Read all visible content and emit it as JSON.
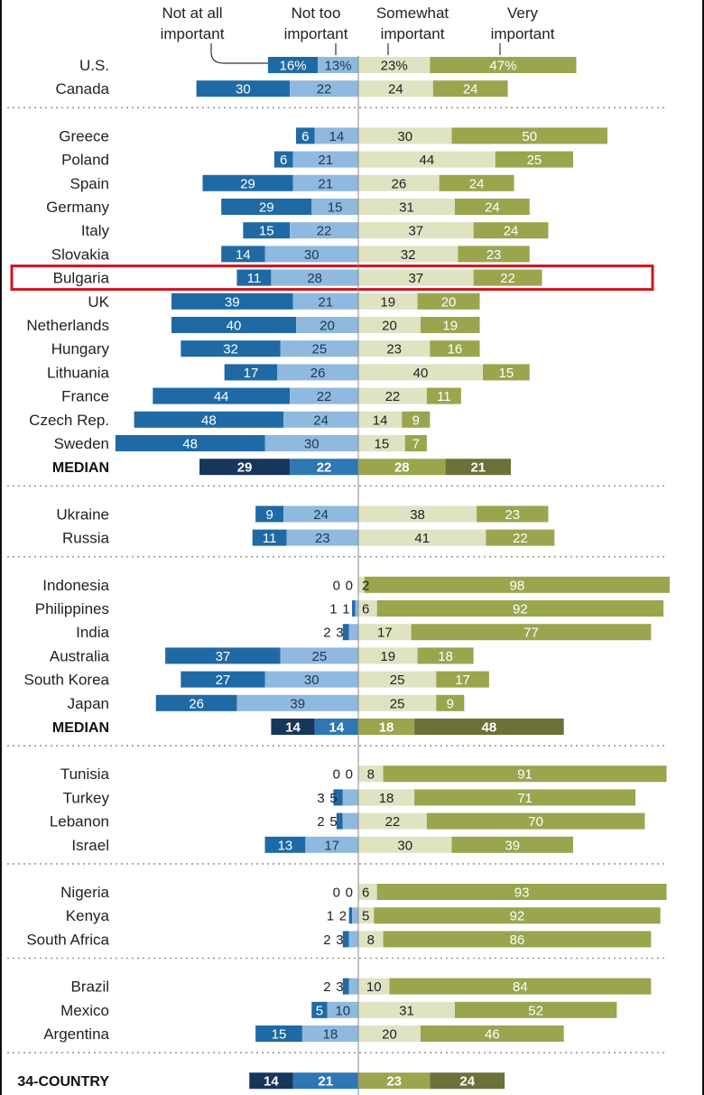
{
  "chart_data": {
    "type": "bar",
    "subtype": "diverging-stacked",
    "legend": [
      {
        "key": "not_at_all",
        "label": "Not at all important",
        "lines": [
          "Not at all",
          "important"
        ],
        "color": "#1f6aa5"
      },
      {
        "key": "not_too",
        "label": "Not too important",
        "lines": [
          "Not too",
          "important"
        ],
        "color": "#8fb9df"
      },
      {
        "key": "somewhat",
        "label": "Somewhat important",
        "lines": [
          "Somewhat",
          "important"
        ],
        "color": "#dfe3c2"
      },
      {
        "key": "very",
        "label": "Very important",
        "lines": [
          "Very",
          "important"
        ],
        "color": "#9aa54e"
      }
    ],
    "median_colors": {
      "not_at_all": "#17365c",
      "not_too": "#2d77b4",
      "somewhat": "#9aa54e",
      "very": "#6b7139"
    },
    "highlight": "Bulgaria",
    "groups": [
      {
        "rows": [
          {
            "label": "U.S.",
            "values": [
              16,
              13,
              23,
              47
            ],
            "pct": true
          },
          {
            "label": "Canada",
            "values": [
              30,
              22,
              24,
              24
            ]
          }
        ]
      },
      {
        "rows": [
          {
            "label": "Greece",
            "values": [
              6,
              14,
              30,
              50
            ]
          },
          {
            "label": "Poland",
            "values": [
              6,
              21,
              44,
              25
            ]
          },
          {
            "label": "Spain",
            "values": [
              29,
              21,
              26,
              24
            ]
          },
          {
            "label": "Germany",
            "values": [
              29,
              15,
              31,
              24
            ]
          },
          {
            "label": "Italy",
            "values": [
              15,
              22,
              37,
              24
            ]
          },
          {
            "label": "Slovakia",
            "values": [
              14,
              30,
              32,
              23
            ]
          },
          {
            "label": "Bulgaria",
            "values": [
              11,
              28,
              37,
              22
            ]
          },
          {
            "label": "UK",
            "values": [
              39,
              21,
              19,
              20
            ]
          },
          {
            "label": "Netherlands",
            "values": [
              40,
              20,
              20,
              19
            ]
          },
          {
            "label": "Hungary",
            "values": [
              32,
              25,
              23,
              16
            ]
          },
          {
            "label": "Lithuania",
            "values": [
              17,
              26,
              40,
              15
            ]
          },
          {
            "label": "France",
            "values": [
              44,
              22,
              22,
              11
            ]
          },
          {
            "label": "Czech Rep.",
            "values": [
              48,
              24,
              14,
              9
            ]
          },
          {
            "label": "Sweden",
            "values": [
              48,
              30,
              15,
              7
            ]
          },
          {
            "label": "MEDIAN",
            "values": [
              29,
              22,
              28,
              21
            ],
            "median": true
          }
        ]
      },
      {
        "rows": [
          {
            "label": "Ukraine",
            "values": [
              9,
              24,
              38,
              23
            ]
          },
          {
            "label": "Russia",
            "values": [
              11,
              23,
              41,
              22
            ]
          }
        ]
      },
      {
        "rows": [
          {
            "label": "Indonesia",
            "values": [
              0,
              0,
              2,
              98
            ]
          },
          {
            "label": "Philippines",
            "values": [
              1,
              1,
              6,
              92
            ]
          },
          {
            "label": "India",
            "values": [
              2,
              3,
              17,
              77
            ]
          },
          {
            "label": "Australia",
            "values": [
              37,
              25,
              19,
              18
            ]
          },
          {
            "label": "South Korea",
            "values": [
              27,
              30,
              25,
              17
            ]
          },
          {
            "label": "Japan",
            "values": [
              26,
              39,
              25,
              9
            ]
          },
          {
            "label": "MEDIAN",
            "values": [
              14,
              14,
              18,
              48
            ],
            "median": true
          }
        ]
      },
      {
        "rows": [
          {
            "label": "Tunisia",
            "values": [
              0,
              0,
              8,
              91
            ]
          },
          {
            "label": "Turkey",
            "values": [
              3,
              5,
              18,
              71
            ]
          },
          {
            "label": "Lebanon",
            "values": [
              2,
              5,
              22,
              70
            ]
          },
          {
            "label": "Israel",
            "values": [
              13,
              17,
              30,
              39
            ]
          }
        ]
      },
      {
        "rows": [
          {
            "label": "Nigeria",
            "values": [
              0,
              0,
              6,
              93
            ]
          },
          {
            "label": "Kenya",
            "values": [
              1,
              2,
              5,
              92
            ]
          },
          {
            "label": "South Africa",
            "values": [
              2,
              3,
              8,
              86
            ]
          }
        ]
      },
      {
        "rows": [
          {
            "label": "Brazil",
            "values": [
              2,
              3,
              10,
              84
            ]
          },
          {
            "label": "Mexico",
            "values": [
              5,
              10,
              31,
              52
            ]
          },
          {
            "label": "Argentina",
            "values": [
              15,
              18,
              20,
              46
            ]
          }
        ]
      },
      {
        "rows": [
          {
            "label": "34-COUNTRY",
            "values": [
              14,
              21,
              23,
              24
            ],
            "median": true
          }
        ]
      }
    ]
  }
}
